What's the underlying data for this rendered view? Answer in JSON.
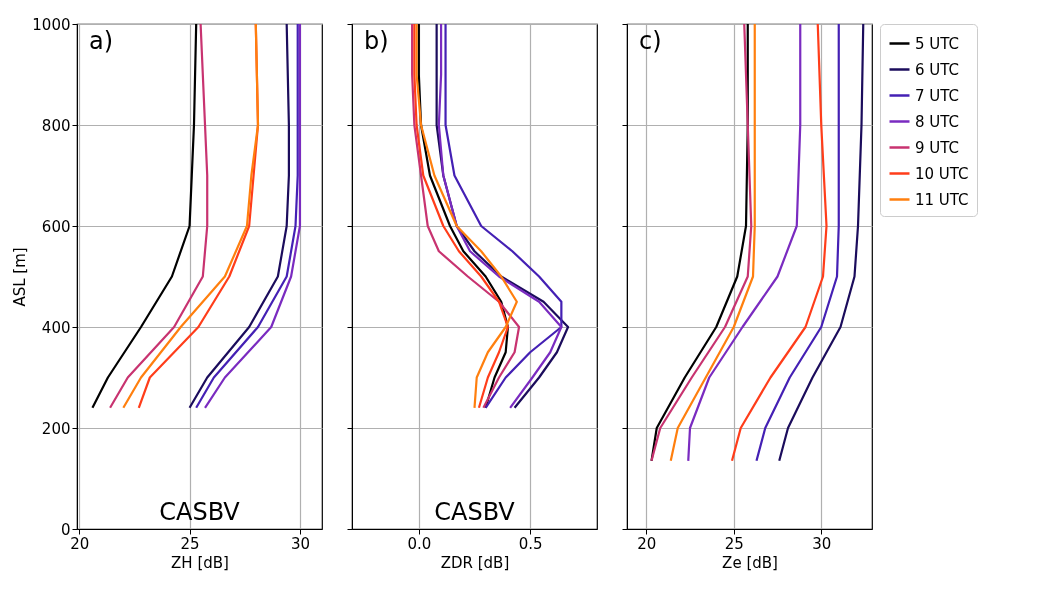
{
  "chart_data": [
    {
      "type": "line",
      "xlabel": "ZH [dB]",
      "ylabel": "ASL [m]",
      "annotations": [
        "a)",
        "CASBV"
      ],
      "xlim": [
        19.9,
        31
      ],
      "xticks": [
        20,
        25,
        30
      ],
      "ylim": [
        0,
        1000
      ],
      "yticks": [
        0,
        200,
        400,
        600,
        800,
        1000
      ],
      "grid": true,
      "series": [
        {
          "color": "#000000",
          "x": [
            20.6,
            21.3,
            22.8,
            24.2,
            25.0,
            25.1,
            25.2,
            25.3
          ],
          "values": [
            240,
            300,
            400,
            500,
            600,
            700,
            800,
            1000
          ]
        },
        {
          "color": "#1b0c5c",
          "x": [
            25.0,
            25.8,
            27.7,
            29.0,
            29.4,
            29.5,
            29.5,
            29.4
          ],
          "values": [
            240,
            300,
            400,
            500,
            600,
            700,
            800,
            1000
          ]
        },
        {
          "color": "#4420b4",
          "x": [
            25.3,
            26.1,
            28.1,
            29.4,
            29.8,
            29.9,
            29.9,
            29.9
          ],
          "values": [
            240,
            300,
            400,
            500,
            600,
            700,
            800,
            1000
          ]
        },
        {
          "color": "#7a2bc0",
          "x": [
            25.7,
            26.6,
            28.7,
            29.6,
            30.0,
            30.0,
            30.0,
            30.0
          ],
          "values": [
            240,
            300,
            400,
            500,
            600,
            700,
            800,
            1000
          ]
        },
        {
          "color": "#c83370",
          "x": [
            21.4,
            22.2,
            24.3,
            25.6,
            25.8,
            25.8,
            25.7,
            25.5
          ],
          "values": [
            240,
            300,
            400,
            500,
            600,
            700,
            800,
            1000
          ]
        },
        {
          "color": "#ff3d1a",
          "x": [
            22.7,
            23.2,
            25.4,
            26.8,
            27.7,
            27.9,
            28.1,
            28.0
          ],
          "values": [
            240,
            300,
            400,
            500,
            600,
            700,
            800,
            1000
          ]
        },
        {
          "color": "#ff7f0e",
          "x": [
            22.0,
            22.8,
            24.6,
            26.6,
            27.6,
            27.8,
            28.1,
            28.0
          ],
          "values": [
            240,
            300,
            400,
            500,
            600,
            700,
            800,
            1000
          ]
        }
      ]
    },
    {
      "type": "line",
      "xlabel": "ZDR [dB]",
      "annotations": [
        "b)",
        "CASBV"
      ],
      "xlim": [
        -0.3,
        0.8
      ],
      "xticks": [
        {
          "value": 0,
          "label": "0.0"
        },
        0.5
      ],
      "ylim": [
        0,
        1000
      ],
      "yticks": [
        0,
        200,
        400,
        600,
        800,
        1000
      ],
      "tick_labels": "x",
      "grid": true,
      "series": [
        {
          "color": "#000000",
          "x": [
            0.3,
            0.34,
            0.39,
            0.4,
            0.37,
            0.3,
            0.2,
            0.14,
            0.05,
            0.01,
            0.0,
            0.0
          ],
          "values": [
            240,
            300,
            350,
            400,
            450,
            500,
            550,
            600,
            700,
            800,
            900,
            1000
          ]
        },
        {
          "color": "#1b0c5c",
          "x": [
            0.43,
            0.54,
            0.62,
            0.67,
            0.56,
            0.37,
            0.25,
            0.17,
            0.11,
            0.08,
            0.08,
            0.08
          ],
          "values": [
            240,
            300,
            350,
            400,
            450,
            500,
            550,
            600,
            700,
            800,
            900,
            1000
          ]
        },
        {
          "color": "#4420b4",
          "x": [
            0.3,
            0.39,
            0.5,
            0.64,
            0.64,
            0.54,
            0.42,
            0.28,
            0.16,
            0.12,
            0.12,
            0.12
          ],
          "values": [
            240,
            300,
            350,
            400,
            450,
            500,
            550,
            600,
            700,
            800,
            900,
            1000
          ]
        },
        {
          "color": "#7a2bc0",
          "x": [
            0.41,
            0.51,
            0.59,
            0.64,
            0.54,
            0.36,
            0.23,
            0.17,
            0.11,
            0.09,
            0.1,
            0.1
          ],
          "values": [
            240,
            300,
            350,
            400,
            450,
            500,
            550,
            600,
            700,
            800,
            900,
            1000
          ]
        },
        {
          "color": "#c83370",
          "x": [
            0.29,
            0.36,
            0.43,
            0.45,
            0.36,
            0.22,
            0.09,
            0.04,
            0.01,
            -0.02,
            -0.03,
            -0.03
          ],
          "values": [
            240,
            300,
            350,
            400,
            450,
            500,
            550,
            600,
            700,
            800,
            900,
            1000
          ]
        },
        {
          "color": "#ff3d1a",
          "x": [
            0.27,
            0.31,
            0.36,
            0.4,
            0.36,
            0.28,
            0.18,
            0.11,
            0.02,
            -0.01,
            -0.02,
            -0.02
          ],
          "values": [
            240,
            300,
            350,
            400,
            450,
            500,
            550,
            600,
            700,
            800,
            900,
            1000
          ]
        },
        {
          "color": "#ff7f0e",
          "x": [
            0.25,
            0.26,
            0.31,
            0.39,
            0.44,
            0.37,
            0.28,
            0.17,
            0.07,
            0.01,
            -0.01,
            -0.01
          ],
          "values": [
            240,
            300,
            350,
            400,
            450,
            500,
            550,
            600,
            700,
            800,
            900,
            1000
          ]
        }
      ]
    },
    {
      "type": "line",
      "xlabel": "Ze [dB]",
      "annotations": [
        "c)"
      ],
      "xlim": [
        18.9,
        32.9
      ],
      "xticks": [
        20,
        25,
        30
      ],
      "ylim": [
        0,
        1000
      ],
      "yticks": [
        0,
        200,
        400,
        600,
        800,
        1000
      ],
      "tick_labels": "x",
      "grid": true,
      "legend": "right",
      "series": [
        {
          "name": "5 UTC",
          "color": "#000000",
          "x": [
            20.3,
            20.6,
            22.2,
            24.0,
            25.2,
            25.7,
            25.8,
            25.8
          ],
          "values": [
            135,
            200,
            300,
            400,
            500,
            600,
            800,
            1000
          ]
        },
        {
          "name": "6 UTC",
          "color": "#1b0c5c",
          "x": [
            27.6,
            28.1,
            29.5,
            31.1,
            31.9,
            32.1,
            32.3,
            32.4
          ],
          "values": [
            135,
            200,
            300,
            400,
            500,
            600,
            800,
            1000
          ]
        },
        {
          "name": "7 UTC",
          "color": "#4420b4",
          "x": [
            26.3,
            26.8,
            28.2,
            30.0,
            30.9,
            31.0,
            31.0,
            31.0
          ],
          "values": [
            135,
            200,
            300,
            400,
            500,
            600,
            800,
            1000
          ]
        },
        {
          "name": "8 UTC",
          "color": "#7a2bc0",
          "x": [
            22.4,
            22.5,
            23.6,
            25.5,
            27.5,
            28.6,
            28.8,
            28.8
          ],
          "values": [
            135,
            200,
            300,
            400,
            500,
            600,
            800,
            1000
          ]
        },
        {
          "name": "9 UTC",
          "color": "#c83370",
          "x": [
            20.3,
            20.8,
            22.6,
            24.5,
            25.8,
            26.0,
            25.8,
            25.6
          ],
          "values": [
            135,
            200,
            300,
            400,
            500,
            600,
            800,
            1000
          ]
        },
        {
          "name": "10 UTC",
          "color": "#ff3d1a",
          "x": [
            24.9,
            25.4,
            27.1,
            29.1,
            30.1,
            30.3,
            30.0,
            29.8
          ],
          "values": [
            135,
            200,
            300,
            400,
            500,
            600,
            800,
            1000
          ]
        },
        {
          "name": "11 UTC",
          "color": "#ff7f0e",
          "x": [
            21.4,
            21.8,
            23.4,
            25.0,
            26.1,
            26.2,
            26.2,
            26.2
          ],
          "values": [
            135,
            200,
            300,
            400,
            500,
            600,
            800,
            1000
          ]
        }
      ]
    }
  ]
}
